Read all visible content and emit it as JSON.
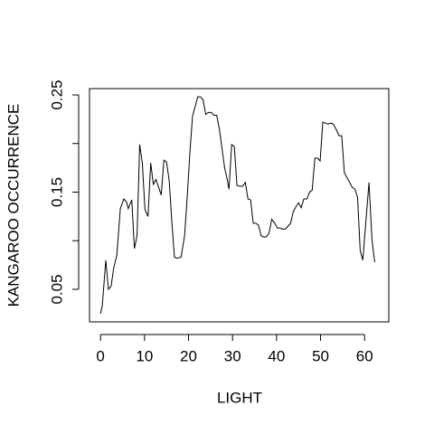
{
  "chart_data": {
    "type": "line",
    "xlabel": "LIGHT",
    "ylabel": "KANGAROO OCCURRENCE",
    "x": [
      0,
      0.4,
      1.2,
      1.8,
      2.4,
      3.0,
      3.7,
      4.5,
      5.3,
      5.9,
      6.3,
      7.1,
      7.7,
      8.3,
      8.9,
      9.5,
      10.1,
      10.8,
      11.4,
      12.0,
      12.6,
      13.2,
      13.8,
      14.4,
      15.0,
      15.6,
      16.2,
      16.8,
      17.4,
      18.3,
      19.1,
      19.7,
      20.3,
      20.9,
      21.5,
      22.1,
      22.7,
      23.3,
      23.9,
      24.5,
      25.2,
      25.8,
      26.4,
      27.0,
      27.6,
      28.2,
      28.8,
      29.2,
      29.8,
      30.4,
      31.0,
      31.6,
      32.3,
      32.9,
      33.5,
      34.1,
      34.7,
      35.3,
      35.9,
      36.5,
      37.1,
      37.7,
      38.3,
      38.9,
      39.6,
      40.2,
      40.8,
      41.4,
      42.0,
      42.6,
      43.2,
      43.8,
      44.4,
      45.0,
      45.6,
      46.2,
      46.9,
      47.5,
      48.1,
      48.7,
      49.3,
      49.9,
      50.5,
      51.1,
      51.7,
      52.3,
      52.9,
      53.5,
      54.2,
      54.8,
      55.4,
      56.0,
      56.6,
      57.2,
      57.8,
      58.4,
      59.0,
      59.6,
      61.0,
      61.7,
      62.3
    ],
    "values": [
      0.025,
      0.033,
      0.08,
      0.05,
      0.053,
      0.072,
      0.085,
      0.133,
      0.143,
      0.14,
      0.133,
      0.142,
      0.092,
      0.105,
      0.199,
      0.18,
      0.132,
      0.125,
      0.18,
      0.158,
      0.163,
      0.155,
      0.147,
      0.183,
      0.181,
      0.162,
      0.12,
      0.083,
      0.082,
      0.083,
      0.105,
      0.145,
      0.19,
      0.228,
      0.238,
      0.248,
      0.248,
      0.245,
      0.23,
      0.232,
      0.232,
      0.229,
      0.229,
      0.215,
      0.195,
      0.175,
      0.163,
      0.153,
      0.199,
      0.197,
      0.157,
      0.156,
      0.156,
      0.16,
      0.143,
      0.142,
      0.118,
      0.118,
      0.116,
      0.105,
      0.104,
      0.104,
      0.108,
      0.122,
      0.118,
      0.113,
      0.113,
      0.112,
      0.112,
      0.115,
      0.118,
      0.13,
      0.135,
      0.139,
      0.134,
      0.143,
      0.143,
      0.15,
      0.152,
      0.185,
      0.185,
      0.182,
      0.222,
      0.221,
      0.22,
      0.221,
      0.22,
      0.215,
      0.208,
      0.208,
      0.17,
      0.165,
      0.16,
      0.155,
      0.153,
      0.145,
      0.09,
      0.08,
      0.16,
      0.1,
      0.078
    ],
    "color": "#000000",
    "xlim": [
      -2.5,
      65.5
    ],
    "xticks": [
      0,
      10,
      20,
      30,
      40,
      50,
      60
    ],
    "ylim": [
      0.0165,
      0.2565
    ],
    "yticks": [
      {
        "value": 0.05,
        "label": "0.05"
      },
      {
        "value": 0.15,
        "label": "0.15"
      },
      {
        "value": 0.25,
        "label": "0.25"
      }
    ],
    "yticks_minor": [
      0.1,
      0.2
    ]
  }
}
